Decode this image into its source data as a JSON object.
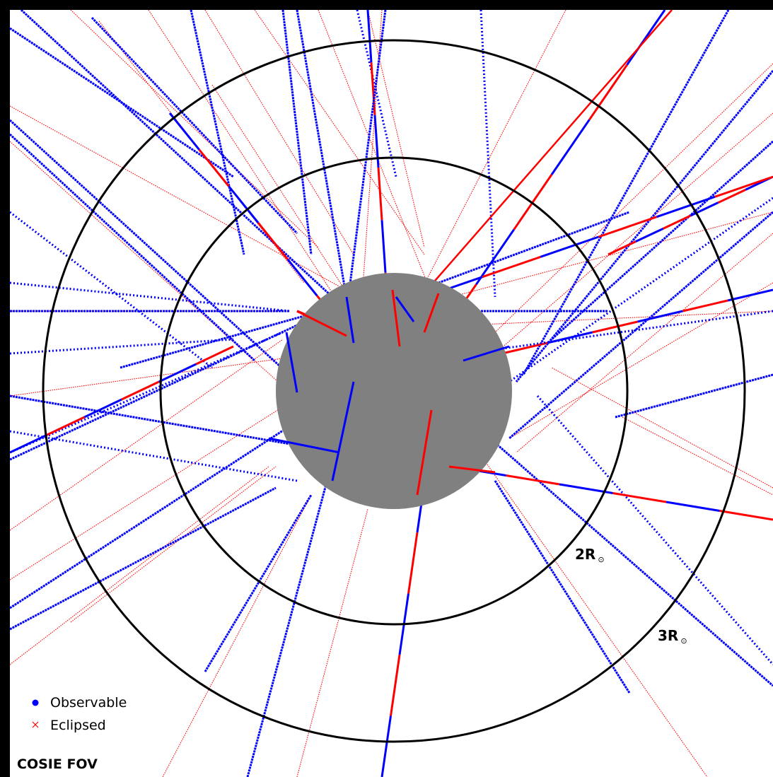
{
  "diagram": {
    "label": "COSIE FOV",
    "rings": [
      {
        "label": "2R",
        "sub": "⊙"
      },
      {
        "label": "3R",
        "sub": "⊙"
      }
    ],
    "legend": [
      {
        "label": "Observable",
        "color": "#0000ff",
        "marker": "dot"
      },
      {
        "label": "Eclipsed",
        "color": "#ff0000",
        "marker": "x"
      }
    ],
    "occulter_color": "#808080",
    "colors": {
      "observable": "#0000ff",
      "eclipsed": "#ff0000"
    }
  }
}
